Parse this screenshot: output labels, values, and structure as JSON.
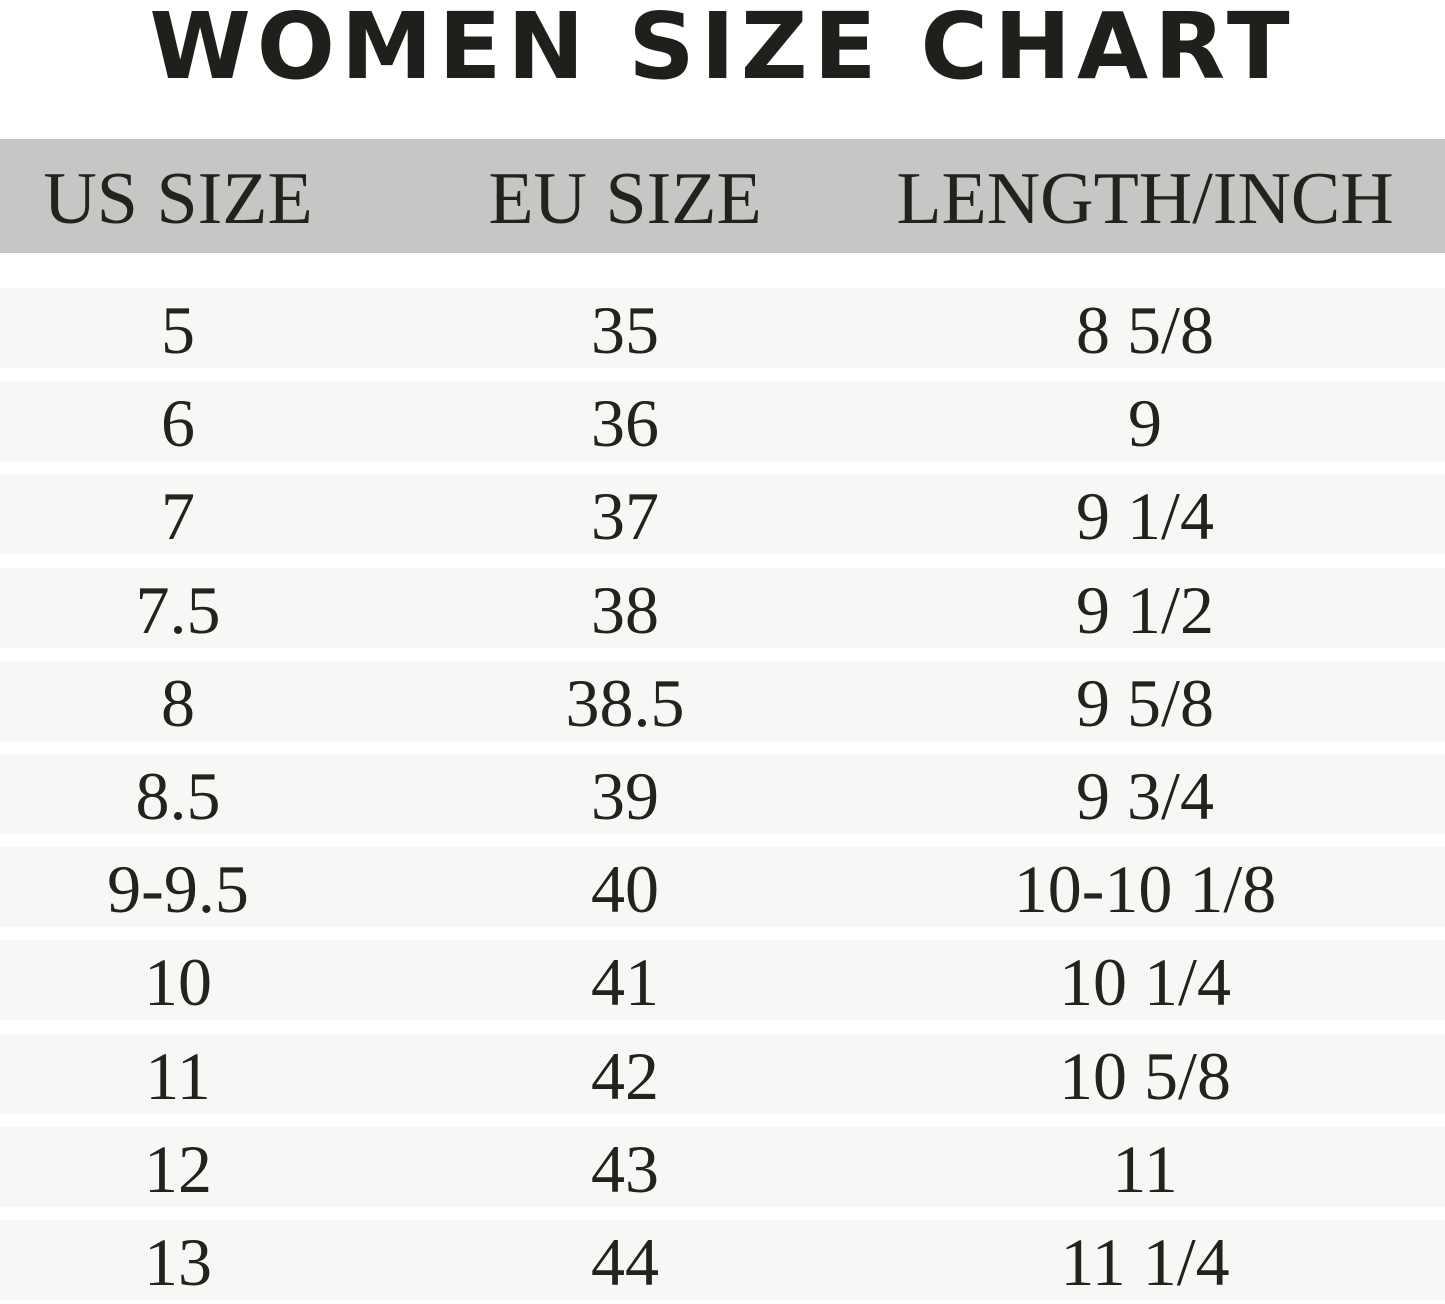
{
  "title": "WOMEN SIZE CHART",
  "chart_data": {
    "type": "table",
    "title": "WOMEN SIZE CHART",
    "columns": [
      "US SIZE",
      "EU SIZE",
      "LENGTH/INCH"
    ],
    "rows": [
      [
        "5",
        "35",
        "8 5/8"
      ],
      [
        "6",
        "36",
        "9"
      ],
      [
        "7",
        "37",
        "9 1/4"
      ],
      [
        "7.5",
        "38",
        "9 1/2"
      ],
      [
        "8",
        "38.5",
        "9 5/8"
      ],
      [
        "8.5",
        "39",
        "9 3/4"
      ],
      [
        "9-9.5",
        "40",
        "10-10 1/8"
      ],
      [
        "10",
        "41",
        "10 1/4"
      ],
      [
        "11",
        "42",
        "10 5/8"
      ],
      [
        "12",
        "43",
        "11"
      ],
      [
        "13",
        "44",
        "11 1/4"
      ]
    ]
  },
  "colors": {
    "header_bg": "#c6c6c4",
    "row_bg": "#f7f7f5",
    "text": "#22221f"
  }
}
